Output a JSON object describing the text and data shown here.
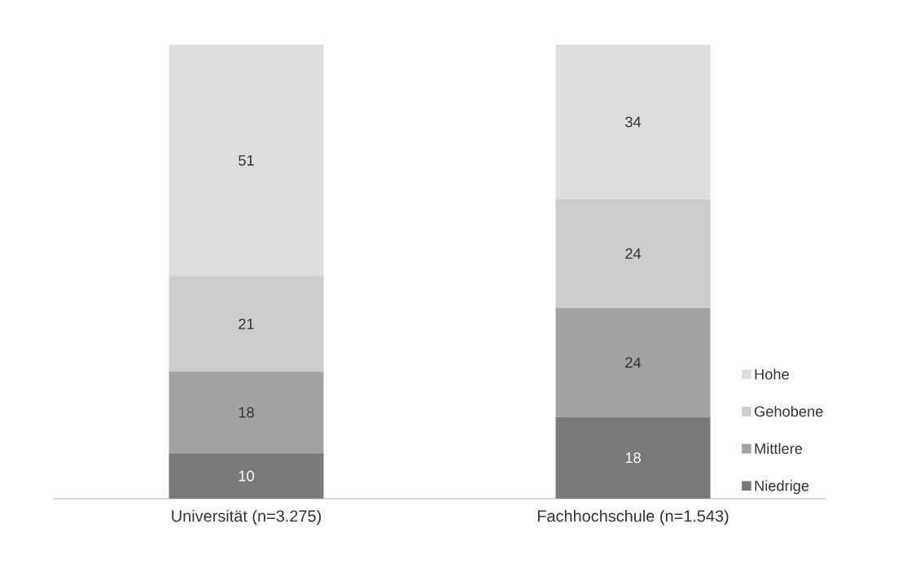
{
  "chart_data": {
    "type": "bar",
    "stacked": true,
    "categories": [
      "Universität (n=3.275)",
      "Fachhochschule (n=1.543)"
    ],
    "series": [
      {
        "name": "Niedrige",
        "color": "#7a7a7a",
        "values": [
          10,
          18
        ]
      },
      {
        "name": "Mittlere",
        "color": "#a3a3a3",
        "values": [
          18,
          24
        ]
      },
      {
        "name": "Gehobene",
        "color": "#cdcdcd",
        "values": [
          21,
          24
        ]
      },
      {
        "name": "Hohe",
        "color": "#dddddd",
        "values": [
          51,
          34
        ]
      }
    ],
    "data_labels": true,
    "legend": "bottom right"
  }
}
